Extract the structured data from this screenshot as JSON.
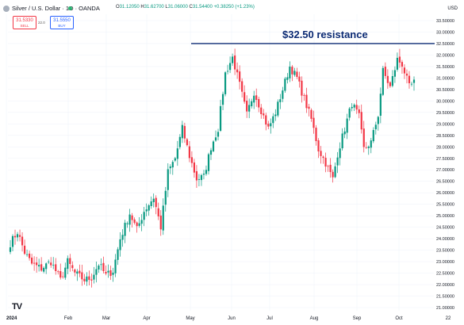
{
  "header": {
    "symbol_title": "Silver / U.S. Dollar · 1D · OANDA",
    "ohlc": [
      {
        "key": "O",
        "value": "31.12050"
      },
      {
        "key": "H",
        "value": "31.62700"
      },
      {
        "key": "L",
        "value": "31.06000"
      },
      {
        "key": "C",
        "value": "31.54400"
      },
      {
        "key": "",
        "value": "+0.38250 (+1.23%)"
      }
    ],
    "currency": "USD"
  },
  "trade": {
    "sell_price": "31.5330",
    "sell_label": "SELL",
    "buy_price": "31.5550",
    "buy_label": "BUY",
    "spread": "22.0"
  },
  "annotation": {
    "text": "$32.50 resistance",
    "level": 32.5,
    "color": "#0b2a73"
  },
  "colors": {
    "up": "#089981",
    "down": "#f23645",
    "grid": "#f0f3fa",
    "axis_text": "#131722"
  },
  "chart_data": {
    "type": "candlestick",
    "y_axis": {
      "min": 21.0,
      "max": 33.5,
      "step": 0.5,
      "tick_labels": [
        "21.00000",
        "21.50000",
        "22.00000",
        "22.50000",
        "23.00000",
        "23.50000",
        "24.00000",
        "24.50000",
        "25.00000",
        "25.50000",
        "26.00000",
        "26.50000",
        "27.00000",
        "27.50000",
        "28.00000",
        "28.50000",
        "29.00000",
        "29.50000",
        "30.00000",
        "30.50000",
        "31.00000",
        "31.50000",
        "32.00000",
        "32.50000",
        "33.00000",
        "33.50000"
      ]
    },
    "x_axis": {
      "tick_labels": [
        "2024",
        "Feb",
        "Mar",
        "Apr",
        "May",
        "Jun",
        "Jul",
        "Aug",
        "Sep",
        "Oct",
        "22"
      ]
    },
    "keypoints": [
      [
        0,
        23.8
      ],
      [
        3,
        24.3
      ],
      [
        6,
        23.4
      ],
      [
        9,
        22.9
      ],
      [
        13,
        22.7
      ],
      [
        17,
        23.0
      ],
      [
        21,
        22.2
      ],
      [
        24,
        23.0
      ],
      [
        27,
        22.5
      ],
      [
        31,
        22.2
      ],
      [
        34,
        22.3
      ],
      [
        37,
        22.9
      ],
      [
        40,
        22.4
      ],
      [
        43,
        22.6
      ],
      [
        46,
        24.0
      ],
      [
        50,
        25.1
      ],
      [
        53,
        24.4
      ],
      [
        56,
        25.2
      ],
      [
        60,
        25.8
      ],
      [
        63,
        24.5
      ],
      [
        66,
        26.9
      ],
      [
        69,
        27.5
      ],
      [
        72,
        28.8
      ],
      [
        75,
        27.6
      ],
      [
        78,
        26.6
      ],
      [
        81,
        26.7
      ],
      [
        84,
        28.0
      ],
      [
        87,
        28.8
      ],
      [
        90,
        31.2
      ],
      [
        93,
        31.9
      ],
      [
        96,
        30.7
      ],
      [
        99,
        29.4
      ],
      [
        102,
        30.4
      ],
      [
        105,
        29.6
      ],
      [
        108,
        28.8
      ],
      [
        111,
        29.5
      ],
      [
        114,
        30.5
      ],
      [
        117,
        31.5
      ],
      [
        120,
        31.0
      ],
      [
        123,
        30.1
      ],
      [
        126,
        29.2
      ],
      [
        129,
        27.9
      ],
      [
        132,
        27.3
      ],
      [
        135,
        26.6
      ],
      [
        137,
        27.7
      ],
      [
        140,
        28.8
      ],
      [
        143,
        29.9
      ],
      [
        146,
        29.3
      ],
      [
        148,
        27.9
      ],
      [
        151,
        28.2
      ],
      [
        154,
        29.4
      ],
      [
        156,
        31.3
      ],
      [
        159,
        30.6
      ],
      [
        162,
        31.8
      ],
      [
        164,
        31.6
      ],
      [
        167,
        30.6
      ],
      [
        169,
        30.8
      ]
    ]
  }
}
